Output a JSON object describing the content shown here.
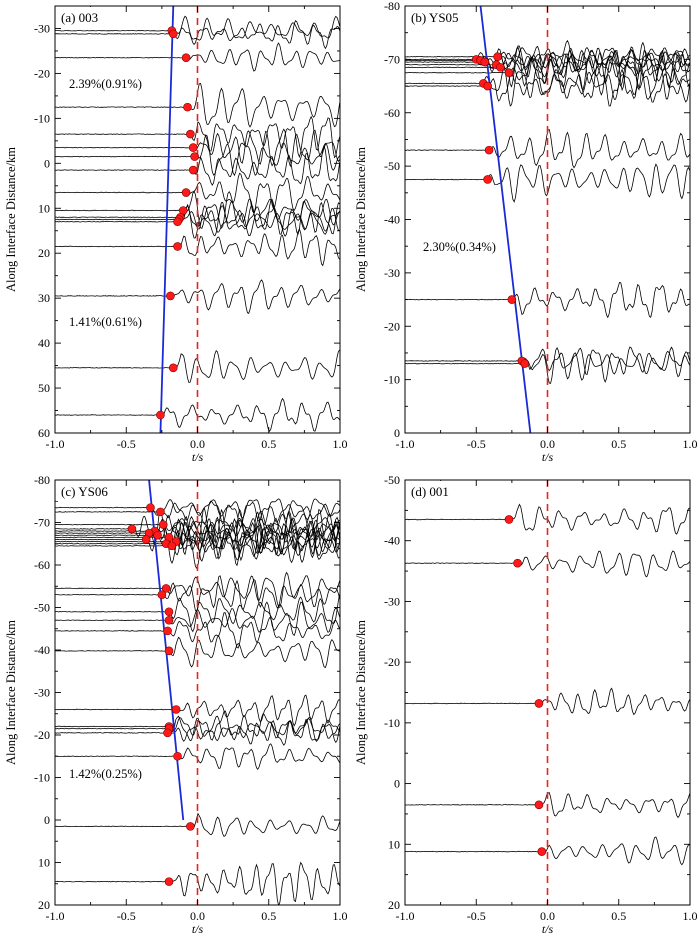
{
  "figure": {
    "panels": [
      {
        "id": "a",
        "label": "(a) 003",
        "ylabel": "Along Interface Distance/km",
        "xlabel": "t/s",
        "yticks": [
          -30,
          -20,
          -10,
          0,
          10,
          20,
          30,
          40,
          50,
          60
        ],
        "ytick_labels": [
          "-30",
          "-20",
          "-10",
          "0",
          "10",
          "20",
          "30",
          "40",
          "50",
          "60"
        ],
        "xticks": [
          -1.0,
          -0.5,
          0.0,
          0.5,
          1.0
        ],
        "xtick_labels": [
          "-1.0",
          "-0.5",
          "0.0",
          "0.5",
          "1.0"
        ],
        "annotations": [
          "2.39%(0.91%)",
          "1.41%(0.61%)"
        ]
      },
      {
        "id": "b",
        "label": "(b) YS05",
        "ylabel": "Along Interface Distance/km",
        "xlabel": "t/s",
        "yticks": [
          -80,
          -70,
          -60,
          -50,
          -40,
          -30,
          -20,
          -10,
          0
        ],
        "ytick_labels": [
          "-80",
          "-70",
          "-60",
          "-50",
          "-40",
          "-30",
          "-20",
          "-10",
          "0"
        ],
        "xticks": [
          -1.0,
          -0.5,
          0.0,
          0.5,
          1.0
        ],
        "xtick_labels": [
          "-1.0",
          "-0.5",
          "0.0",
          "0.5",
          "1.0"
        ],
        "annotations": [
          "2.30%(0.34%)"
        ]
      },
      {
        "id": "c",
        "label": "(c) YS06",
        "ylabel": "Along Interface Distance/km",
        "xlabel": "t/s",
        "yticks": [
          -80,
          -70,
          -60,
          -50,
          -40,
          -30,
          -20,
          -10,
          0,
          10,
          20
        ],
        "ytick_labels": [
          "-80",
          "-70",
          "-60",
          "-50",
          "-40",
          "-30",
          "-20",
          "-10",
          "0",
          "10",
          "20"
        ],
        "xticks": [
          -1.0,
          -0.5,
          0.0,
          0.5,
          1.0
        ],
        "xtick_labels": [
          "-1.0",
          "-0.5",
          "0.0",
          "0.5",
          "1.0"
        ],
        "annotations": [
          "1.42%(0.25%)"
        ]
      },
      {
        "id": "d",
        "label": "(d) 001",
        "ylabel": "Along Interface Distance/km",
        "xlabel": "t/s",
        "yticks": [
          -50,
          -40,
          -30,
          -20,
          -10,
          0,
          10,
          20
        ],
        "ytick_labels": [
          "-50",
          "-40",
          "-30",
          "-20",
          "-10",
          "0",
          "10",
          "20"
        ],
        "xticks": [
          -1.0,
          -0.5,
          0.0,
          0.5,
          1.0
        ],
        "xtick_labels": [
          "-1.0",
          "-0.5",
          "0.0",
          "0.5",
          "1.0"
        ],
        "annotations": []
      }
    ]
  },
  "chart_data": [
    {
      "type": "scatter",
      "panel": "a",
      "xlim": [
        -1.0,
        1.0
      ],
      "ylim": [
        60,
        -35
      ],
      "traces": [
        {
          "y": -29.5,
          "onset": -0.18
        },
        {
          "y": -28.8,
          "onset": -0.17
        },
        {
          "y": -23.5,
          "onset": -0.08
        },
        {
          "y": -12.5,
          "onset": -0.07
        },
        {
          "y": -6.5,
          "onset": -0.05
        },
        {
          "y": -3.5,
          "onset": -0.03
        },
        {
          "y": -1.5,
          "onset": -0.02
        },
        {
          "y": 1.5,
          "onset": -0.03
        },
        {
          "y": 6.5,
          "onset": -0.08
        },
        {
          "y": 10.5,
          "onset": -0.1
        },
        {
          "y": 12.0,
          "onset": -0.12
        },
        {
          "y": 12.5,
          "onset": -0.13
        },
        {
          "y": 13.0,
          "onset": -0.14
        },
        {
          "y": 18.5,
          "onset": -0.14
        },
        {
          "y": 29.5,
          "onset": -0.19
        },
        {
          "y": 45.5,
          "onset": -0.17
        },
        {
          "y": 56.0,
          "onset": -0.26
        }
      ],
      "fit_line": {
        "y_top": -35,
        "t_top": -0.17,
        "y_bottom": 60,
        "t_bottom": -0.26
      },
      "reference_time": 0.0
    },
    {
      "type": "scatter",
      "panel": "b",
      "xlim": [
        -1.0,
        1.0
      ],
      "ylim": [
        0,
        -80
      ],
      "traces": [
        {
          "y": -70.5,
          "onset": -0.35
        },
        {
          "y": -70.0,
          "onset": -0.5
        },
        {
          "y": -69.8,
          "onset": -0.47
        },
        {
          "y": -69.5,
          "onset": -0.44
        },
        {
          "y": -69.0,
          "onset": -0.36
        },
        {
          "y": -68.5,
          "onset": -0.33
        },
        {
          "y": -67.5,
          "onset": -0.27
        },
        {
          "y": -65.5,
          "onset": -0.45
        },
        {
          "y": -65.0,
          "onset": -0.42
        },
        {
          "y": -53.0,
          "onset": -0.41
        },
        {
          "y": -47.5,
          "onset": -0.42
        },
        {
          "y": -25.0,
          "onset": -0.25
        },
        {
          "y": -13.5,
          "onset": -0.18
        },
        {
          "y": -13.0,
          "onset": -0.16
        }
      ],
      "fit_line": {
        "y_top": -80,
        "t_top": -0.47,
        "y_bottom": 0,
        "t_bottom": -0.12
      },
      "reference_time": 0.0
    },
    {
      "type": "scatter",
      "panel": "c",
      "xlim": [
        -1.0,
        1.0
      ],
      "ylim": [
        20,
        -80
      ],
      "traces": [
        {
          "y": -73.5,
          "onset": -0.33
        },
        {
          "y": -72.5,
          "onset": -0.26
        },
        {
          "y": -68.5,
          "onset": -0.46
        },
        {
          "y": -69.5,
          "onset": -0.24
        },
        {
          "y": -68.0,
          "onset": -0.3
        },
        {
          "y": -67.5,
          "onset": -0.34
        },
        {
          "y": -67.0,
          "onset": -0.28
        },
        {
          "y": -66.5,
          "onset": -0.2
        },
        {
          "y": -66.0,
          "onset": -0.36
        },
        {
          "y": -65.5,
          "onset": -0.15
        },
        {
          "y": -65.0,
          "onset": -0.22
        },
        {
          "y": -64.5,
          "onset": -0.18
        },
        {
          "y": -54.5,
          "onset": -0.22
        },
        {
          "y": -53.0,
          "onset": -0.25
        },
        {
          "y": -49.0,
          "onset": -0.2
        },
        {
          "y": -47.0,
          "onset": -0.2
        },
        {
          "y": -44.5,
          "onset": -0.21
        },
        {
          "y": -39.8,
          "onset": -0.2
        },
        {
          "y": -26.0,
          "onset": -0.15
        },
        {
          "y": -22.0,
          "onset": -0.2
        },
        {
          "y": -21.5,
          "onset": -0.2
        },
        {
          "y": -20.5,
          "onset": -0.21
        },
        {
          "y": -15.0,
          "onset": -0.14
        },
        {
          "y": 1.5,
          "onset": -0.05
        },
        {
          "y": 14.5,
          "onset": -0.2
        }
      ],
      "fit_line": {
        "y_top": -80,
        "t_top": -0.34,
        "y_bottom": 0,
        "t_bottom": -0.1
      },
      "reference_time": 0.0
    },
    {
      "type": "scatter",
      "panel": "d",
      "xlim": [
        -1.0,
        1.0
      ],
      "ylim": [
        20,
        -50
      ],
      "traces": [
        {
          "y": -43.5,
          "onset": -0.27
        },
        {
          "y": -36.3,
          "onset": -0.21
        },
        {
          "y": -13.2,
          "onset": -0.06
        },
        {
          "y": 3.5,
          "onset": -0.06
        },
        {
          "y": 11.2,
          "onset": -0.04
        }
      ],
      "reference_time": 0.0
    }
  ]
}
